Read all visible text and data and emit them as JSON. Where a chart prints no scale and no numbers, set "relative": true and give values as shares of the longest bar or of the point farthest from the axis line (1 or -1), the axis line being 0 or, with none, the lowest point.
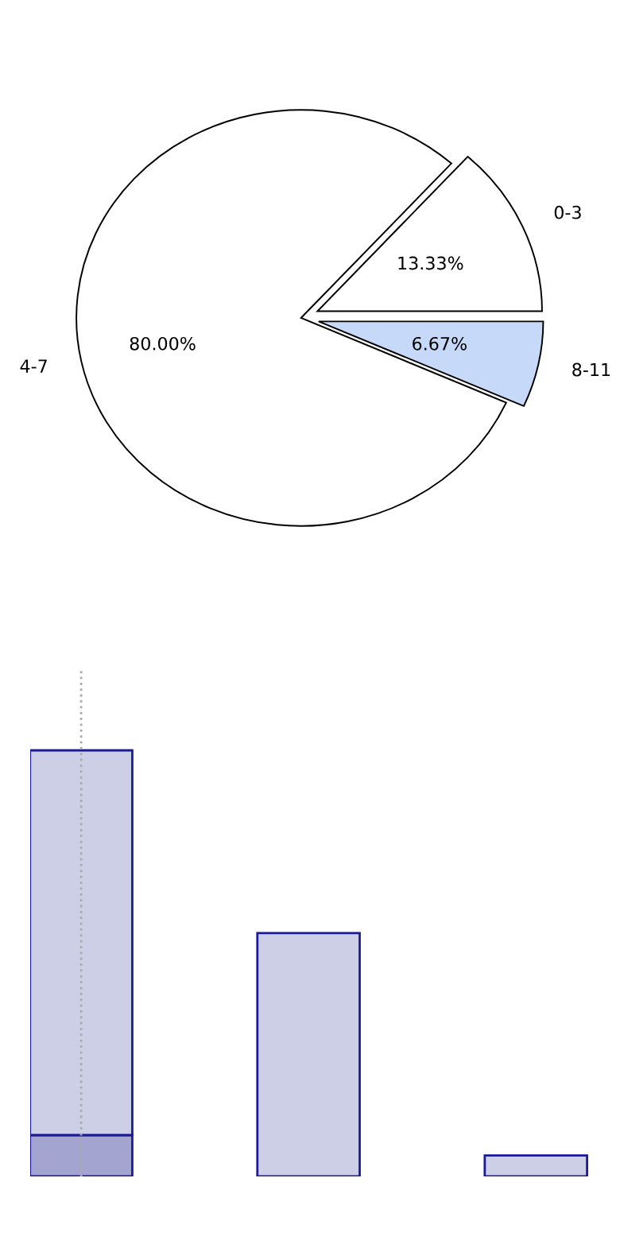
{
  "chart_data": [
    {
      "type": "pie",
      "categories": [
        "0-3",
        "4-7",
        "8-11"
      ],
      "values": [
        13.33,
        80.0,
        6.67
      ],
      "colors": [
        "#ffffff",
        "#ffffff",
        "#c6d9f8"
      ],
      "value_labels": [
        "13.33%",
        "80.00%",
        "6.67%"
      ],
      "legend": false
    },
    {
      "type": "bar",
      "relative": true,
      "stacked": true,
      "categories": [
        null,
        null,
        null
      ],
      "series": [
        {
          "color": "#a3a5d0",
          "values": [
            0.097,
            null,
            null
          ]
        },
        {
          "color": "#cccfe5",
          "values": [
            0.903,
            0.571,
            0.049
          ]
        }
      ],
      "grid": false,
      "legend": false
    }
  ]
}
